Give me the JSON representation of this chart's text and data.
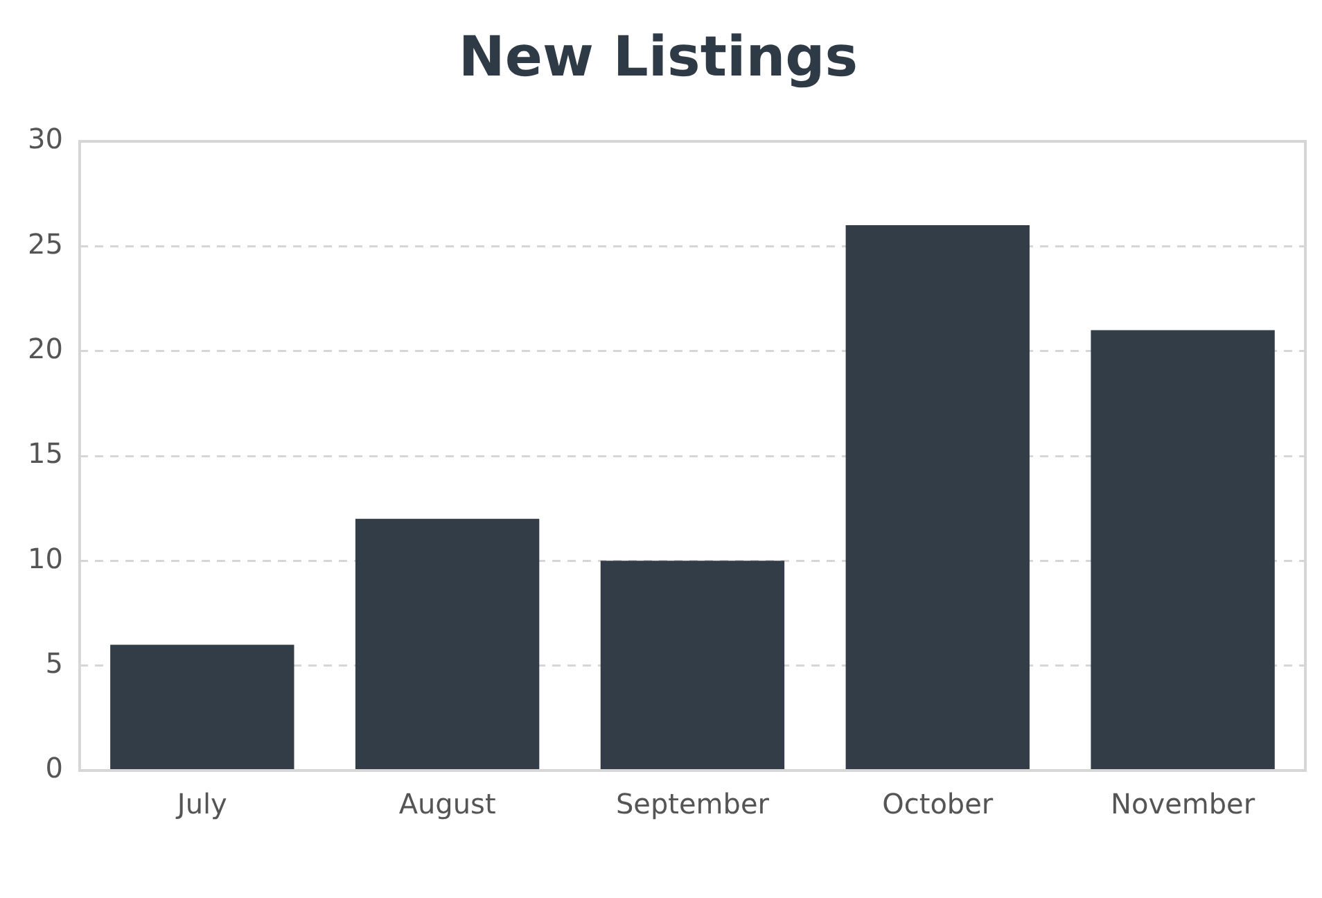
{
  "chart_data": {
    "type": "bar",
    "title": "New Listings",
    "categories": [
      "July",
      "August",
      "September",
      "October",
      "November"
    ],
    "values": [
      6,
      12,
      10,
      26,
      21
    ],
    "color": "#333d47",
    "ylim": [
      0,
      30
    ],
    "yticks": [
      0,
      5,
      10,
      15,
      20,
      25,
      30
    ],
    "grid": "y",
    "legend": false
  }
}
